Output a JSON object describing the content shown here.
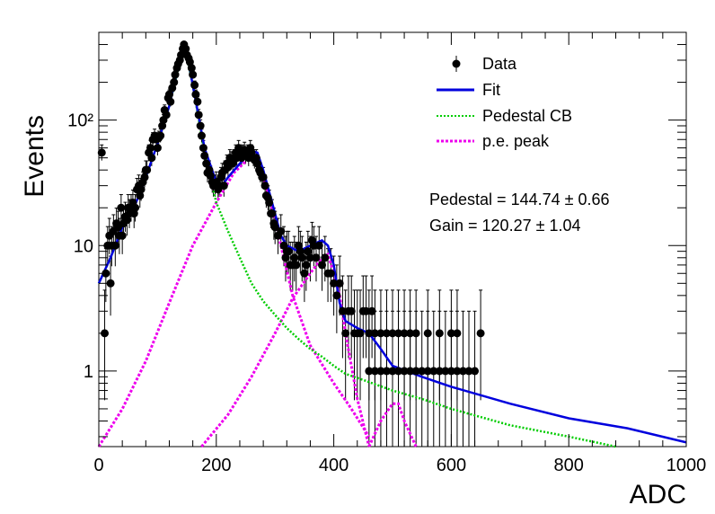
{
  "chart_data": {
    "type": "scatter",
    "title": "",
    "xlabel": "ADC",
    "ylabel": "Events",
    "xlim": [
      0,
      1000
    ],
    "ylim": [
      0.25,
      500
    ],
    "log_y": true,
    "grid": false,
    "x_ticks": [
      0,
      200,
      400,
      600,
      800,
      1000
    ],
    "y_ticks": [
      {
        "value": 1,
        "label": "1"
      },
      {
        "value": 10,
        "label": "10"
      },
      {
        "value": 100,
        "label": "10²"
      }
    ],
    "legend": {
      "placement": "top-right",
      "entries": [
        {
          "label": "Data",
          "style": "marker"
        },
        {
          "label": "Fit",
          "style": "solid",
          "color": "#0000dd"
        },
        {
          "label": "Pedestal CB",
          "style": "dotted",
          "color": "#00cc00"
        },
        {
          "label": "p.e. peak",
          "style": "dotted",
          "color": "#ee00ee"
        }
      ]
    },
    "annotations": [
      "Pedestal = 144.74 ± 0.66",
      "Gain = 120.27 ± 1.04"
    ],
    "fit_parameters": {
      "pedestal": {
        "value": 144.74,
        "error": 0.66
      },
      "gain": {
        "value": 120.27,
        "error": 1.04
      }
    },
    "data_points": [
      [
        5,
        55
      ],
      [
        10,
        2
      ],
      [
        12,
        6
      ],
      [
        15,
        10
      ],
      [
        18,
        12
      ],
      [
        20,
        5
      ],
      [
        22,
        10
      ],
      [
        25,
        13
      ],
      [
        28,
        10
      ],
      [
        30,
        15
      ],
      [
        33,
        14
      ],
      [
        35,
        12
      ],
      [
        38,
        20
      ],
      [
        40,
        12
      ],
      [
        42,
        15
      ],
      [
        45,
        17
      ],
      [
        48,
        16
      ],
      [
        50,
        20
      ],
      [
        52,
        18
      ],
      [
        55,
        20
      ],
      [
        58,
        22
      ],
      [
        60,
        18
      ],
      [
        62,
        20
      ],
      [
        65,
        28
      ],
      [
        68,
        30
      ],
      [
        70,
        25
      ],
      [
        72,
        28
      ],
      [
        75,
        32
      ],
      [
        78,
        35
      ],
      [
        80,
        40
      ],
      [
        82,
        40
      ],
      [
        85,
        55
      ],
      [
        88,
        60
      ],
      [
        90,
        50
      ],
      [
        92,
        70
      ],
      [
        95,
        75
      ],
      [
        98,
        70
      ],
      [
        100,
        60
      ],
      [
        102,
        72
      ],
      [
        105,
        75
      ],
      [
        108,
        90
      ],
      [
        110,
        100
      ],
      [
        112,
        120
      ],
      [
        115,
        110
      ],
      [
        118,
        150
      ],
      [
        120,
        160
      ],
      [
        122,
        140
      ],
      [
        125,
        180
      ],
      [
        128,
        200
      ],
      [
        130,
        230
      ],
      [
        133,
        260
      ],
      [
        135,
        280
      ],
      [
        138,
        300
      ],
      [
        140,
        330
      ],
      [
        143,
        370
      ],
      [
        145,
        400
      ],
      [
        148,
        370
      ],
      [
        150,
        330
      ],
      [
        153,
        310
      ],
      [
        155,
        290
      ],
      [
        158,
        260
      ],
      [
        160,
        230
      ],
      [
        163,
        190
      ],
      [
        165,
        160
      ],
      [
        168,
        140
      ],
      [
        170,
        110
      ],
      [
        173,
        90
      ],
      [
        175,
        75
      ],
      [
        178,
        60
      ],
      [
        180,
        52
      ],
      [
        183,
        45
      ],
      [
        185,
        38
      ],
      [
        188,
        40
      ],
      [
        190,
        36
      ],
      [
        193,
        32
      ],
      [
        195,
        30
      ],
      [
        198,
        30
      ],
      [
        200,
        32
      ],
      [
        203,
        28
      ],
      [
        205,
        30
      ],
      [
        208,
        35
      ],
      [
        210,
        38
      ],
      [
        213,
        30
      ],
      [
        215,
        40
      ],
      [
        218,
        45
      ],
      [
        220,
        42
      ],
      [
        223,
        50
      ],
      [
        225,
        48
      ],
      [
        228,
        45
      ],
      [
        230,
        50
      ],
      [
        233,
        55
      ],
      [
        235,
        50
      ],
      [
        238,
        60
      ],
      [
        240,
        55
      ],
      [
        243,
        50
      ],
      [
        245,
        55
      ],
      [
        248,
        58
      ],
      [
        250,
        52
      ],
      [
        253,
        55
      ],
      [
        255,
        50
      ],
      [
        258,
        60
      ],
      [
        260,
        55
      ],
      [
        263,
        50
      ],
      [
        265,
        48
      ],
      [
        268,
        50
      ],
      [
        270,
        45
      ],
      [
        273,
        40
      ],
      [
        275,
        38
      ],
      [
        278,
        35
      ],
      [
        280,
        35
      ],
      [
        283,
        30
      ],
      [
        285,
        25
      ],
      [
        288,
        24
      ],
      [
        290,
        22
      ],
      [
        293,
        18
      ],
      [
        295,
        18
      ],
      [
        298,
        15
      ],
      [
        300,
        14
      ],
      [
        305,
        12
      ],
      [
        310,
        13
      ],
      [
        315,
        10
      ],
      [
        318,
        8
      ],
      [
        320,
        9
      ],
      [
        323,
        9
      ],
      [
        326,
        7
      ],
      [
        330,
        7
      ],
      [
        333,
        8
      ],
      [
        336,
        7
      ],
      [
        340,
        10
      ],
      [
        343,
        9
      ],
      [
        346,
        8
      ],
      [
        350,
        6
      ],
      [
        353,
        7
      ],
      [
        356,
        9
      ],
      [
        360,
        8
      ],
      [
        363,
        11
      ],
      [
        366,
        10
      ],
      [
        370,
        8
      ],
      [
        375,
        10
      ],
      [
        380,
        7
      ],
      [
        385,
        8
      ],
      [
        390,
        6
      ],
      [
        395,
        6
      ],
      [
        400,
        5
      ],
      [
        405,
        4
      ],
      [
        410,
        5
      ],
      [
        415,
        3
      ],
      [
        420,
        2
      ],
      [
        425,
        3
      ],
      [
        430,
        3
      ],
      [
        435,
        2
      ],
      [
        440,
        2
      ],
      [
        445,
        2
      ],
      [
        450,
        3
      ],
      [
        455,
        3
      ],
      [
        460,
        2
      ],
      [
        465,
        3
      ],
      [
        470,
        2
      ],
      [
        480,
        2
      ],
      [
        490,
        2
      ],
      [
        500,
        2
      ],
      [
        510,
        2
      ],
      [
        520,
        2
      ],
      [
        530,
        2
      ],
      [
        540,
        2
      ],
      [
        560,
        2
      ],
      [
        580,
        2
      ],
      [
        600,
        2
      ],
      [
        610,
        2
      ],
      [
        650,
        2
      ],
      [
        460,
        1
      ],
      [
        470,
        1
      ],
      [
        480,
        1
      ],
      [
        490,
        1
      ],
      [
        500,
        1
      ],
      [
        510,
        1
      ],
      [
        520,
        1
      ],
      [
        530,
        1
      ],
      [
        540,
        1
      ],
      [
        550,
        1
      ],
      [
        560,
        1
      ],
      [
        570,
        1
      ],
      [
        580,
        1
      ],
      [
        590,
        1
      ],
      [
        600,
        1
      ],
      [
        610,
        1
      ],
      [
        620,
        1
      ],
      [
        630,
        1
      ],
      [
        640,
        1
      ]
    ],
    "curves": {
      "fit": [
        [
          0,
          5
        ],
        [
          20,
          8
        ],
        [
          40,
          14
        ],
        [
          60,
          20
        ],
        [
          80,
          35
        ],
        [
          100,
          65
        ],
        [
          120,
          130
        ],
        [
          140,
          340
        ],
        [
          150,
          340
        ],
        [
          160,
          190
        ],
        [
          180,
          60
        ],
        [
          200,
          32
        ],
        [
          210,
          30
        ],
        [
          220,
          35
        ],
        [
          240,
          45
        ],
        [
          260,
          57
        ],
        [
          270,
          55
        ],
        [
          280,
          40
        ],
        [
          300,
          18
        ],
        [
          310,
          12
        ],
        [
          320,
          10
        ],
        [
          340,
          9
        ],
        [
          360,
          10
        ],
        [
          380,
          11
        ],
        [
          390,
          10
        ],
        [
          400,
          7
        ],
        [
          410,
          3.5
        ],
        [
          420,
          2.5
        ],
        [
          440,
          2.2
        ],
        [
          460,
          2.0
        ],
        [
          480,
          1.5
        ],
        [
          500,
          1.1
        ],
        [
          550,
          0.9
        ],
        [
          600,
          0.75
        ],
        [
          700,
          0.55
        ],
        [
          800,
          0.42
        ],
        [
          900,
          0.35
        ],
        [
          1000,
          0.27
        ]
      ],
      "pedestal_cb": [
        [
          0,
          5
        ],
        [
          20,
          8
        ],
        [
          40,
          14
        ],
        [
          60,
          20
        ],
        [
          80,
          35
        ],
        [
          100,
          65
        ],
        [
          120,
          130
        ],
        [
          140,
          320
        ],
        [
          150,
          320
        ],
        [
          160,
          190
        ],
        [
          180,
          55
        ],
        [
          200,
          22
        ],
        [
          220,
          13
        ],
        [
          240,
          8
        ],
        [
          260,
          5
        ],
        [
          280,
          3.6
        ],
        [
          300,
          2.8
        ],
        [
          320,
          2.2
        ],
        [
          340,
          1.8
        ],
        [
          360,
          1.5
        ],
        [
          380,
          1.3
        ],
        [
          400,
          1.1
        ],
        [
          420,
          0.95
        ],
        [
          450,
          0.85
        ],
        [
          500,
          0.7
        ],
        [
          550,
          0.6
        ],
        [
          600,
          0.5
        ],
        [
          700,
          0.37
        ],
        [
          800,
          0.3
        ],
        [
          880,
          0.25
        ]
      ],
      "pe_peaks": [
        [
          [
            0,
            0.25
          ],
          [
            40,
            0.5
          ],
          [
            80,
            1.2
          ],
          [
            120,
            3.5
          ],
          [
            160,
            10
          ],
          [
            200,
            22
          ],
          [
            230,
            38
          ],
          [
            260,
            52
          ],
          [
            270,
            48
          ],
          [
            290,
            25
          ],
          [
            310,
            10
          ],
          [
            330,
            4
          ],
          [
            360,
            1.6
          ],
          [
            400,
            0.8
          ],
          [
            430,
            0.5
          ],
          [
            460,
            0.3
          ]
        ],
        [
          [
            175,
            0.25
          ],
          [
            220,
            0.45
          ],
          [
            260,
            0.9
          ],
          [
            300,
            2
          ],
          [
            330,
            3.8
          ],
          [
            360,
            6
          ],
          [
            380,
            8
          ],
          [
            390,
            8.5
          ],
          [
            400,
            6
          ],
          [
            410,
            4
          ],
          [
            420,
            2
          ],
          [
            440,
            0.6
          ],
          [
            460,
            0.25
          ]
        ],
        [
          [
            460,
            0.25
          ],
          [
            480,
            0.4
          ],
          [
            500,
            0.55
          ],
          [
            510,
            0.55
          ],
          [
            520,
            0.4
          ],
          [
            540,
            0.25
          ]
        ]
      ]
    }
  }
}
